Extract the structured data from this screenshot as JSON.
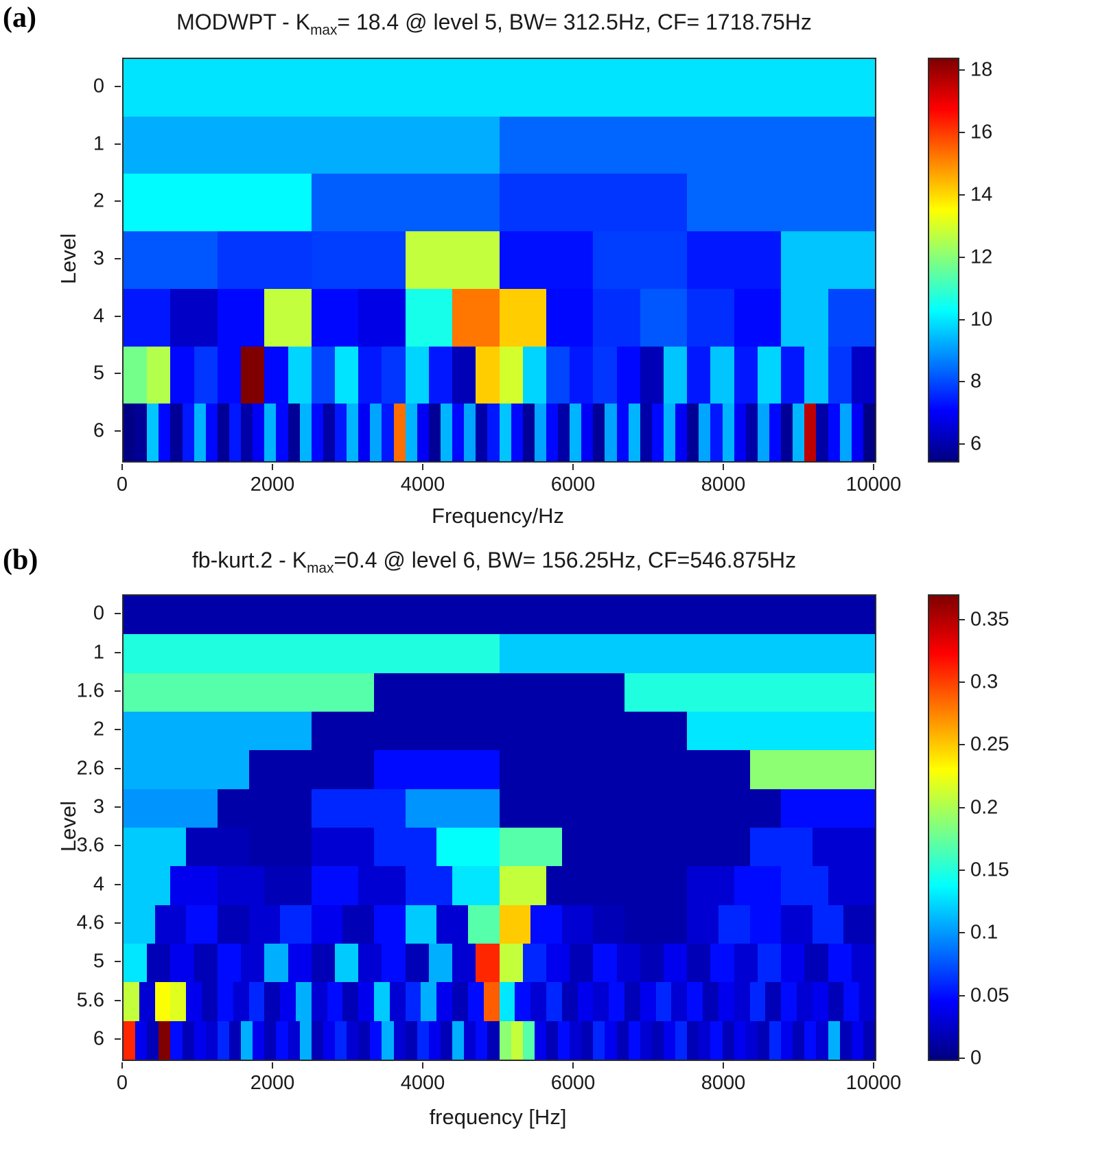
{
  "figure": {
    "background": "#ffffff",
    "text_color": "#1a1a1a"
  },
  "chart_data": [
    {
      "type": "heatmap",
      "name": "modwpt-kurtogram",
      "tag": "(a)",
      "title_pre": "MODWPT - K",
      "title_sub": "max",
      "title_post": "= 18.4 @ level 5, BW= 312.5Hz, CF= 1718.75Hz",
      "xlabel": "Frequency/Hz",
      "ylabel": "Level",
      "xlim": [
        0,
        10000
      ],
      "xticks": [
        0,
        2000,
        4000,
        6000,
        8000,
        10000
      ],
      "vmin": 5.5,
      "vmax": 18.4,
      "colorbar_ticks": [
        6,
        8,
        10,
        12,
        14,
        16,
        18
      ],
      "colormap": "jet",
      "colormap_stops": [
        "#000080",
        "#0000FF",
        "#0080FF",
        "#00FFFF",
        "#80FF80",
        "#FFFF00",
        "#FF8000",
        "#FF0000",
        "#800000"
      ],
      "rows": [
        {
          "level": "0",
          "values": [
            10.0
          ]
        },
        {
          "level": "1",
          "values": [
            9.3,
            8.4
          ]
        },
        {
          "level": "2",
          "values": [
            10.3,
            8.3,
            7.8,
            8.4
          ]
        },
        {
          "level": "3",
          "values": [
            8.2,
            7.8,
            7.9,
            12.8,
            7.3,
            7.9,
            7.4,
            9.6
          ]
        },
        {
          "level": "4",
          "values": [
            7.4,
            6.4,
            7.2,
            12.8,
            7.2,
            6.8,
            10.6,
            15.3,
            14.2,
            7.2,
            7.7,
            8.2,
            7.7,
            7.2,
            9.6,
            8.0
          ]
        },
        {
          "level": "5",
          "values": [
            11.8,
            12.6,
            7.2,
            7.8,
            7.2,
            18.4,
            7.2,
            9.8,
            8.0,
            10.0,
            7.4,
            7.8,
            9.8,
            7.4,
            6.2,
            14.2,
            13.0,
            9.8,
            8.0,
            7.4,
            7.8,
            7.2,
            6.2,
            9.6,
            7.4,
            9.6,
            7.4,
            9.8,
            7.4,
            9.6,
            7.8,
            6.4
          ]
        },
        {
          "level": "6",
          "values": [
            5.6,
            5.8,
            9.6,
            7.2,
            5.8,
            7.4,
            9.4,
            7.2,
            5.8,
            7.4,
            6.0,
            7.0,
            9.4,
            7.2,
            5.8,
            9.4,
            7.2,
            6.0,
            7.4,
            9.4,
            7.0,
            9.2,
            7.4,
            15.4,
            9.4,
            7.0,
            5.8,
            9.4,
            7.2,
            9.2,
            6.0,
            7.4,
            9.6,
            7.2,
            5.8,
            9.2,
            7.2,
            6.0,
            9.4,
            7.0,
            5.8,
            9.2,
            7.2,
            9.4,
            6.0,
            7.2,
            9.4,
            7.0,
            5.8,
            9.2,
            7.4,
            9.4,
            7.0,
            6.0,
            9.2,
            7.2,
            5.8,
            9.4,
            17.6,
            6.0,
            7.2,
            9.2,
            7.0,
            5.6
          ]
        }
      ]
    },
    {
      "type": "heatmap",
      "name": "fast-kurtogram",
      "tag": "(b)",
      "title_pre": "fb-kurt.2 - K",
      "title_sub": "max",
      "title_post": "=0.4 @ level 6, BW= 156.25Hz, CF=546.875Hz",
      "xlabel": "frequency [Hz]",
      "ylabel": "Level",
      "xlim": [
        0,
        10000
      ],
      "xticks": [
        0,
        2000,
        4000,
        6000,
        8000,
        10000
      ],
      "vmin": 0,
      "vmax": 0.37,
      "colorbar_ticks": [
        0,
        0.05,
        0.1,
        0.15,
        0.2,
        0.25,
        0.3,
        0.35
      ],
      "colormap": "jet",
      "colormap_stops": [
        "#000080",
        "#0000FF",
        "#0080FF",
        "#00FFFF",
        "#80FF80",
        "#FFFF00",
        "#FF8000",
        "#FF0000",
        "#800000"
      ],
      "rows": [
        {
          "level": "0",
          "values": [
            0.015
          ]
        },
        {
          "level": "1",
          "values": [
            0.15,
            0.12
          ]
        },
        {
          "level": "1.6",
          "values": [
            0.17,
            0.015,
            0.15
          ]
        },
        {
          "level": "2",
          "values": [
            0.11,
            0.015,
            0.015,
            0.13
          ]
        },
        {
          "level": "2.6",
          "values": [
            0.11,
            0.015,
            0.05,
            0.015,
            0.015,
            0.19
          ]
        },
        {
          "level": "3",
          "values": [
            0.1,
            0.015,
            0.06,
            0.1,
            0.015,
            0.015,
            0.015,
            0.05
          ]
        },
        {
          "level": "3.6",
          "values": [
            0.12,
            0.02,
            0.015,
            0.03,
            0.06,
            0.14,
            0.17,
            0.015,
            0.015,
            0.015,
            0.06,
            0.03
          ]
        },
        {
          "level": "4",
          "values": [
            0.12,
            0.04,
            0.03,
            0.02,
            0.05,
            0.03,
            0.06,
            0.13,
            0.21,
            0.015,
            0.015,
            0.015,
            0.03,
            0.05,
            0.06,
            0.03
          ]
        },
        {
          "level": "4.6",
          "values": [
            0.12,
            0.03,
            0.05,
            0.02,
            0.03,
            0.06,
            0.04,
            0.02,
            0.05,
            0.12,
            0.03,
            0.17,
            0.25,
            0.05,
            0.03,
            0.02,
            0.015,
            0.015,
            0.03,
            0.06,
            0.05,
            0.03,
            0.06,
            0.02
          ]
        },
        {
          "level": "5",
          "values": [
            0.13,
            0.02,
            0.04,
            0.02,
            0.05,
            0.03,
            0.11,
            0.04,
            0.02,
            0.12,
            0.03,
            0.05,
            0.02,
            0.11,
            0.03,
            0.31,
            0.21,
            0.06,
            0.04,
            0.02,
            0.05,
            0.03,
            0.02,
            0.04,
            0.02,
            0.05,
            0.03,
            0.06,
            0.04,
            0.02,
            0.05,
            0.03
          ]
        },
        {
          "level": "5.6",
          "values": [
            0.21,
            0.03,
            0.23,
            0.22,
            0.04,
            0.02,
            0.05,
            0.03,
            0.06,
            0.02,
            0.04,
            0.11,
            0.03,
            0.05,
            0.02,
            0.04,
            0.12,
            0.03,
            0.06,
            0.11,
            0.04,
            0.02,
            0.05,
            0.29,
            0.13,
            0.05,
            0.03,
            0.06,
            0.02,
            0.04,
            0.03,
            0.05,
            0.02,
            0.04,
            0.06,
            0.03,
            0.05,
            0.02,
            0.04,
            0.03,
            0.06,
            0.02,
            0.05,
            0.03,
            0.04,
            0.02,
            0.05,
            0.03
          ]
        },
        {
          "level": "6",
          "values": [
            0.31,
            0.04,
            0.02,
            0.37,
            0.05,
            0.02,
            0.04,
            0.03,
            0.06,
            0.02,
            0.11,
            0.04,
            0.02,
            0.05,
            0.03,
            0.11,
            0.02,
            0.04,
            0.06,
            0.03,
            0.02,
            0.05,
            0.11,
            0.03,
            0.02,
            0.06,
            0.04,
            0.02,
            0.11,
            0.03,
            0.05,
            0.02,
            0.19,
            0.21,
            0.17,
            0.04,
            0.02,
            0.05,
            0.03,
            0.02,
            0.06,
            0.04,
            0.02,
            0.05,
            0.03,
            0.02,
            0.04,
            0.06,
            0.02,
            0.03,
            0.05,
            0.02,
            0.04,
            0.03,
            0.02,
            0.06,
            0.04,
            0.02,
            0.05,
            0.03,
            0.11,
            0.02,
            0.04,
            0.02
          ]
        }
      ]
    }
  ]
}
